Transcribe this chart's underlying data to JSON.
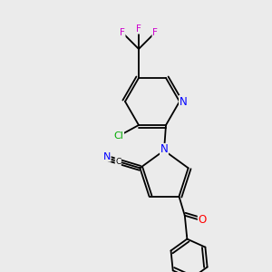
{
  "background_color": "#ebebeb",
  "bond_color": "#000000",
  "colors": {
    "N": "#0000ff",
    "O": "#ff0000",
    "F": "#cc00cc",
    "Cl": "#00aa00",
    "C": "#000000"
  },
  "font_size": 7.5,
  "bond_lw": 1.3
}
